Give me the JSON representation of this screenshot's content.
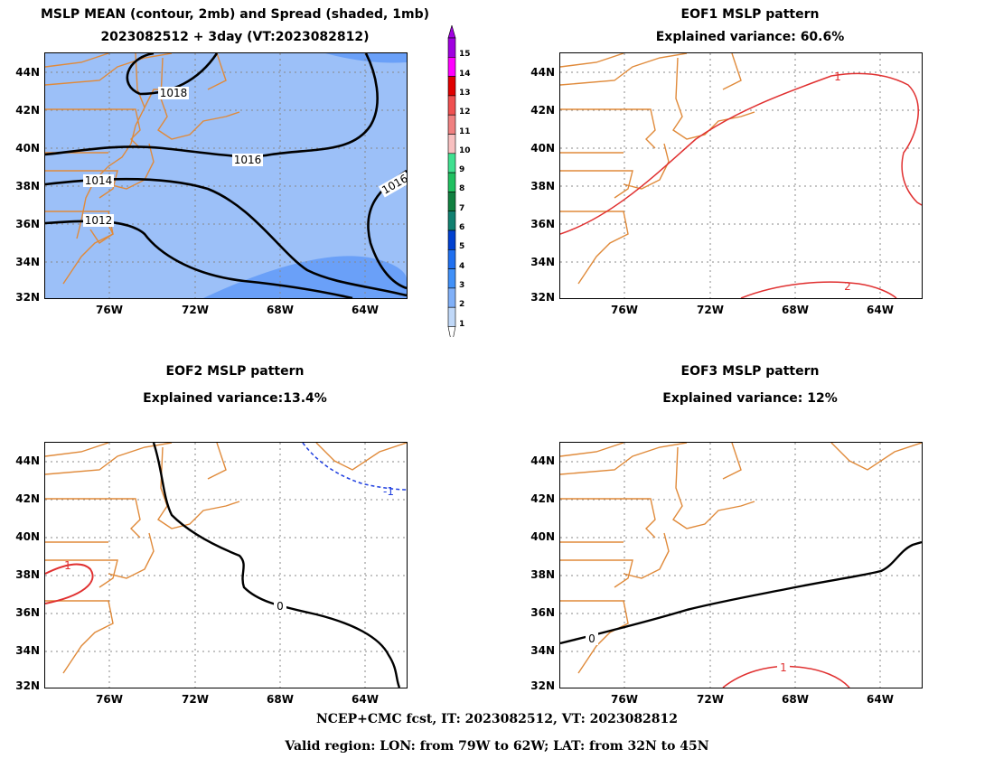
{
  "panels": {
    "mean": {
      "title1": "MSLP MEAN (contour, 2mb) and Spread (shaded, 1mb)",
      "title2": "2023082512 + 3day (VT:2023082812)",
      "contour_labels": [
        "1018",
        "1016",
        "1014",
        "1012",
        "1016"
      ]
    },
    "eof1": {
      "title1": "EOF1 MSLP pattern",
      "title2": "Explained variance: 60.6%",
      "contour_labels": [
        "1",
        "2"
      ]
    },
    "eof2": {
      "title1": "EOF2 MSLP pattern",
      "title2": "Explained variance:13.4%",
      "contour_labels": [
        "-1",
        "0",
        "1"
      ]
    },
    "eof3": {
      "title1": "EOF3 MSLP pattern",
      "title2": "Explained variance: 12%",
      "contour_labels": [
        "0",
        "1"
      ]
    }
  },
  "lat_labels": [
    "44N",
    "42N",
    "40N",
    "38N",
    "36N",
    "34N",
    "32N"
  ],
  "lon_labels": [
    "76W",
    "72W",
    "68W",
    "64W"
  ],
  "colorbar": {
    "labels": [
      "15",
      "14",
      "13",
      "12",
      "11",
      "10",
      "9",
      "8",
      "7",
      "6",
      "5",
      "4",
      "3",
      "2",
      "1"
    ],
    "colors": [
      "#a000e0",
      "#ff00ff",
      "#e00000",
      "#f05050",
      "#f08080",
      "#f8c0c0",
      "#40e090",
      "#20c060",
      "#108040",
      "#108070",
      "#0040d0",
      "#2070f0",
      "#4090f8",
      "#80b0f8",
      "#c0d8f8"
    ]
  },
  "colors": {
    "coast": "#e08a3a",
    "positive": "#e03030",
    "negative": "#2040e0",
    "spread_1": "#9cc0f8",
    "spread_2": "#6aa0f8"
  },
  "footer": {
    "line1": "NCEP+CMC fcst, IT: 2023082512, VT: 2023082812",
    "line2": "Valid region: LON: from 79W to 62W; LAT: from 32N to 45N"
  }
}
